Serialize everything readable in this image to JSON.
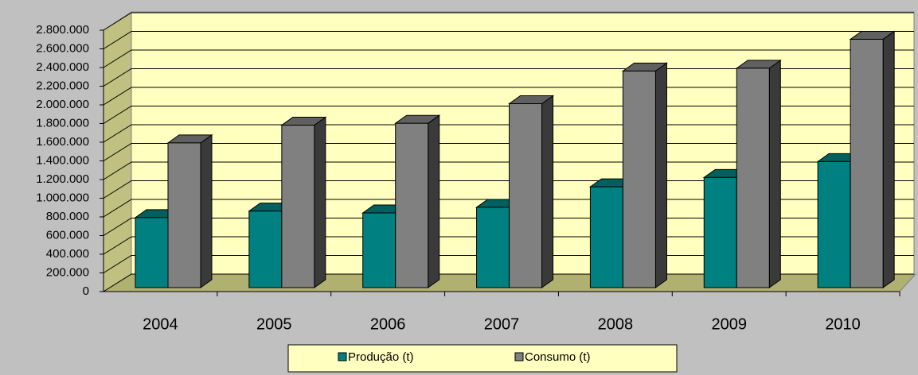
{
  "chart_data": {
    "type": "bar3d",
    "categories": [
      "2004",
      "2005",
      "2006",
      "2007",
      "2008",
      "2009",
      "2010"
    ],
    "series": [
      {
        "name": "Produção (t)",
        "color": "#008080",
        "values": [
          750000,
          820000,
          800000,
          860000,
          1080000,
          1180000,
          1350000
        ]
      },
      {
        "name": "Consumo (t)",
        "color": "#808080",
        "values": [
          1550000,
          1740000,
          1760000,
          1970000,
          2320000,
          2350000,
          2660000
        ]
      }
    ],
    "ylim": [
      0,
      2800000
    ],
    "yticks": [
      0,
      {
        "value": 200000,
        "label": "200.000"
      },
      {
        "value": 400000,
        "label": "400.000"
      },
      {
        "value": 600000,
        "label": "600.000"
      },
      {
        "value": 800000,
        "label": "800.000"
      },
      {
        "value": 1000000,
        "label": "1.000.000"
      },
      {
        "value": 1200000,
        "label": "1.200.000"
      },
      {
        "value": 1400000,
        "label": "1.400.000"
      },
      {
        "value": 1600000,
        "label": "1.600.000"
      },
      {
        "value": 1800000,
        "label": "1.800.000"
      },
      {
        "value": 2000000,
        "label": "2.000.000"
      },
      {
        "value": 2200000,
        "label": "2.200.000"
      },
      {
        "value": 2400000,
        "label": "2.400.000"
      },
      {
        "value": 2600000,
        "label": "2.600.000"
      },
      {
        "value": 2800000,
        "label": "2.800.000"
      }
    ],
    "grid": true,
    "legend": "bottom"
  }
}
